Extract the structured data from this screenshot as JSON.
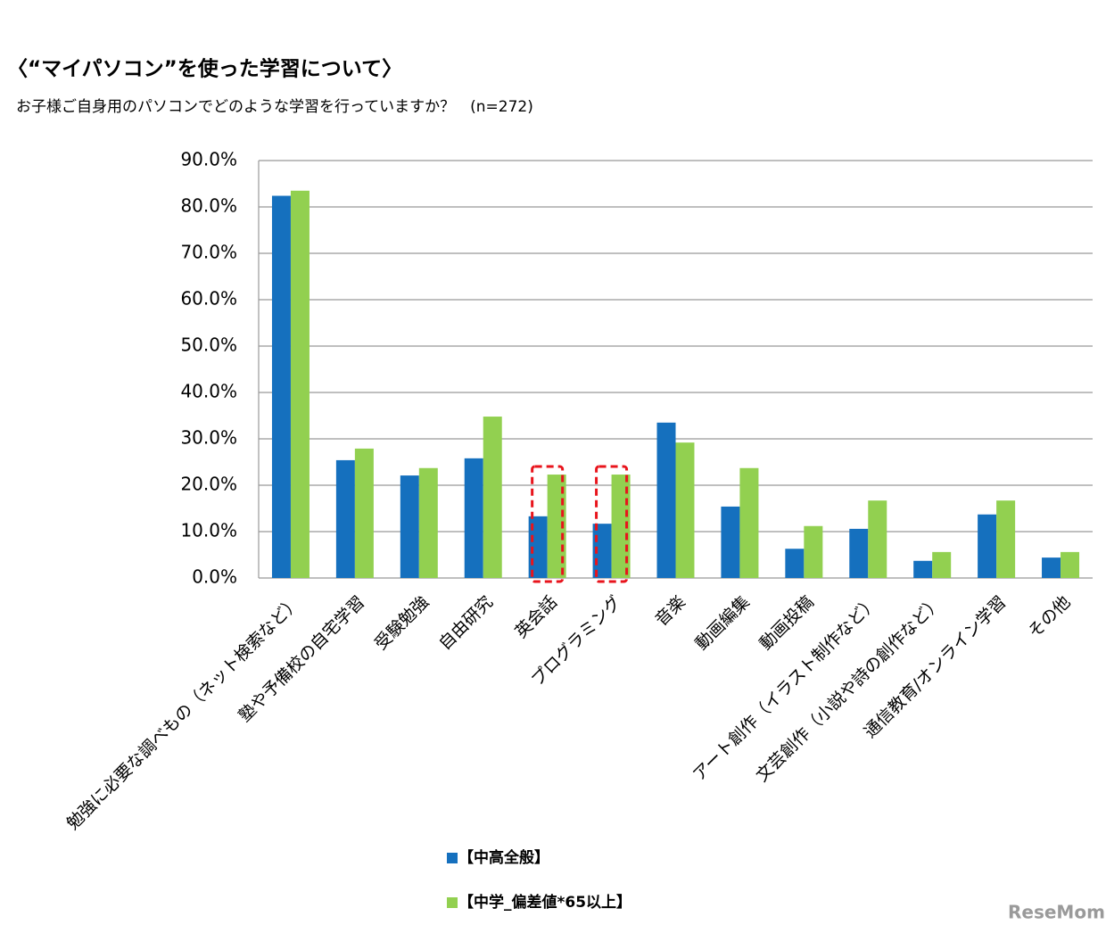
{
  "chart_data": {
    "type": "bar",
    "title": "〈“マイパソコン”を使った学習について〉",
    "subtitle": "お子様ご自身用のパソコンでどのような学習を行っていますか？　(n=272)",
    "categories": [
      "勉強に必要な調べもの（ネット検索など）",
      "塾や予備校の自宅学習",
      "受験勉強",
      "自由研究",
      "英会話",
      "プログラミング",
      "音楽",
      "動画編集",
      "動画投稿",
      "アート創作（イラスト制作など）",
      "文芸創作（小説や詩の創作など）",
      "通信教育/オンライン学習",
      "その他"
    ],
    "series": [
      {
        "name": "【中高全般】",
        "color": "#1570be",
        "values": [
          82.4,
          25.4,
          22.1,
          25.8,
          13.3,
          11.7,
          33.5,
          15.4,
          6.3,
          10.6,
          3.7,
          13.7,
          4.4
        ]
      },
      {
        "name": "【中学_偏差値*65以上】",
        "color": "#92d050",
        "values": [
          83.5,
          27.9,
          23.7,
          34.8,
          22.3,
          22.3,
          29.2,
          23.7,
          11.2,
          16.7,
          5.6,
          16.7,
          5.6
        ]
      }
    ],
    "ylim": [
      0,
      90
    ],
    "yticks": [
      {
        "value": 0,
        "label": "0.0%"
      },
      {
        "value": 10,
        "label": "10.0%"
      },
      {
        "value": 20,
        "label": "20.0%"
      },
      {
        "value": 30,
        "label": "30.0%"
      },
      {
        "value": 40,
        "label": "40.0%"
      },
      {
        "value": 50,
        "label": "50.0%"
      },
      {
        "value": 60,
        "label": "60.0%"
      },
      {
        "value": 70,
        "label": "70.0%"
      },
      {
        "value": 80,
        "label": "80.0%"
      },
      {
        "value": 90,
        "label": "90.0%"
      }
    ],
    "grid": true,
    "highlighted_categories": [
      "英会話",
      "プログラミング"
    ],
    "highlight_color": "#e8141c",
    "watermark": "ReseMom"
  }
}
